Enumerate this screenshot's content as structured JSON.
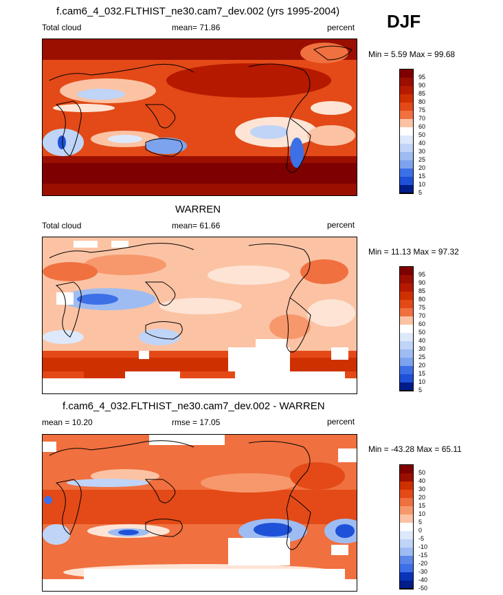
{
  "season": "DJF",
  "colors": {
    "reds": [
      "#7f0000",
      "#9a0f00",
      "#b51a00",
      "#cf3000",
      "#e34a17",
      "#f0703f",
      "#f7986c",
      "#fbc3a4",
      "#fde4d5",
      "#ffffff"
    ],
    "blues": [
      "#ffffff",
      "#dde9fb",
      "#bfd4f7",
      "#9ebcf2",
      "#7ea3ee",
      "#5d88ea",
      "#3d6fe6",
      "#1f51d8",
      "#0a33b8",
      "#001d8a"
    ]
  },
  "panels": [
    {
      "title": "f.cam6_4_032.FLTHIST_ne30.cam7_dev.002 (yrs 1995-2004)",
      "left_label": "Total cloud",
      "center_label": "mean=  71.86",
      "right_label": "percent",
      "range_label": "Min =   5.59 Max =  99.68",
      "colorbar_labels": [
        "95",
        "90",
        "85",
        "80",
        "75",
        "70",
        "60",
        "50",
        "40",
        "30",
        "25",
        "20",
        "15",
        "10",
        "5"
      ]
    },
    {
      "title": "WARREN",
      "left_label": "Total cloud",
      "center_label": "mean=  61.66",
      "right_label": "percent",
      "range_label": "Min =  11.13 Max =  97.32",
      "colorbar_labels": [
        "95",
        "90",
        "85",
        "80",
        "75",
        "70",
        "60",
        "50",
        "40",
        "30",
        "25",
        "20",
        "15",
        "10",
        "5"
      ]
    },
    {
      "title": "f.cam6_4_032.FLTHIST_ne30.cam7_dev.002 - WARREN",
      "left_label": "mean =  10.20",
      "center_label": "rmse =  17.05",
      "right_label": "percent",
      "range_label": "Min = -43.28 Max =  65.11",
      "colorbar_labels": [
        "50",
        "40",
        "30",
        "20",
        "15",
        "10",
        "5",
        "0",
        "-5",
        "-10",
        "-15",
        "-20",
        "-30",
        "-40",
        "-50"
      ]
    }
  ]
}
